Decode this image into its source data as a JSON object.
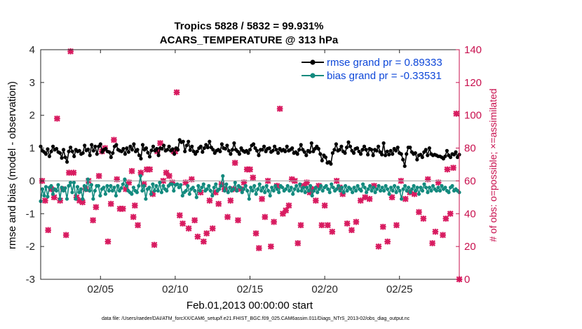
{
  "chart_data": {
    "type": "line",
    "title_line1": "Tropics 5828 / 5832 = 99.931%",
    "title_line2": "ACARS_TEMPERATURE @ 313 hPa",
    "xlabel": "Feb.01,2013 00:00:00 start",
    "ylabel_left": "rmse and bias (model - observation)",
    "ylabel_right": "# of obs: o=possible; ×=assimilated",
    "footer": "data file: /Users/raeder/DAI/ATM_forcXX/CAM6_setup/f.e21.FHIST_BGC.f09_025.CAM6assim.011/Diags_NTrS_2013-02/obs_diag_output.nc",
    "xlim": [
      1.0,
      29.0
    ],
    "ylim_left": [
      -3,
      4
    ],
    "ylim_right": [
      0,
      140
    ],
    "xticks": [
      5,
      10,
      15,
      20,
      25
    ],
    "xtick_labels": [
      "02/05",
      "02/10",
      "02/15",
      "02/20",
      "02/25"
    ],
    "yticks_left": [
      -3,
      -2,
      -1,
      0,
      1,
      2,
      3,
      4
    ],
    "yticks_left_labels": [
      "-3",
      "-2",
      "-1",
      "0",
      "1",
      "2",
      "3",
      "4"
    ],
    "yticks_right": [
      0,
      20,
      40,
      60,
      80,
      100,
      120,
      140
    ],
    "yticks_right_labels": [
      "0",
      "20",
      "40",
      "60",
      "80",
      "100",
      "120",
      "140"
    ],
    "legend_position": "top-right",
    "colors": {
      "rmse": "#000000",
      "bias": "#128a7e",
      "obs": "#d81b60",
      "right_axis": "#c8104e",
      "legend_text": "#0d47d9"
    },
    "series": [
      {
        "name": "rmse grand pr = 0.89333",
        "values": [
          1.05,
          0.92,
          0.88,
          0.82,
          0.97,
          0.75,
          0.9,
          1.05,
          0.95,
          0.98,
          0.88,
          0.85,
          0.7,
          0.95,
          0.72,
          0.58,
          0.9,
          1.02,
          0.9,
          0.75,
          0.95,
          0.9,
          0.92,
          0.82,
          0.85,
          1.08,
          0.93,
          0.96,
          0.78,
          1.1,
          0.92,
          1.05,
          0.82,
          1.05,
          1.12,
          0.88,
          0.95,
          0.98,
          0.9,
          0.88,
          0.72,
          0.85,
          1.05,
          1.1,
          0.95,
          0.92,
          0.9,
          0.98,
          0.82,
          1.0,
          0.88,
          1.05,
          0.95,
          1.12,
          0.9,
          0.95,
          0.78,
          0.68,
          1.1,
          0.95,
          1.0,
          0.86,
          0.74,
          0.93,
          1.05,
          0.92,
          0.98,
          0.78,
          1.0,
          0.98,
          1.08,
          0.92,
          0.95,
          1.05,
          0.92,
          0.97,
          0.82,
          1.0,
          0.95,
          1.25,
          1.18,
          1.2,
          0.9,
          1.08,
          1.2,
          0.94,
          1.05,
          0.9,
          0.82,
          0.9,
          1.0,
          1.05,
          0.88,
          1.0,
          1.1,
          1.02,
          1.2,
          1.02,
          0.95,
          0.85,
          0.92,
          0.95,
          0.9,
          1.12,
          1.0,
          0.98,
          1.08,
          0.92,
          0.82,
          0.95,
          1.15,
          0.95,
          0.9,
          0.82,
          1.0,
          0.92,
          0.88,
          0.92,
          0.85,
          0.95,
          1.08,
          1.12,
          1.0,
          0.92,
          0.78,
          0.95,
          0.95,
          1.05,
          0.9,
          0.98,
          1.0,
          0.88,
          0.92,
          1.05,
          0.95,
          0.85,
          0.98,
          0.92,
          0.95,
          0.9,
          1.05,
          0.92,
          0.95,
          1.0,
          0.85,
          0.88,
          0.82,
          0.95,
          1.1,
          0.95,
          0.88,
          0.78,
          0.92,
          0.88,
          1.15,
          0.9,
          0.98,
          1.05,
          0.98,
          0.82,
          0.62,
          0.78,
          0.72,
          0.55,
          0.58,
          0.52,
          0.85,
          0.95,
          1.12,
          0.92,
          0.95,
          1.05,
          0.9,
          0.85,
          1.02,
          1.18,
          1.05,
          0.92,
          0.85,
          0.98,
          1.0,
          0.9,
          0.82,
          0.95,
          1.05,
          0.95,
          0.8,
          0.98,
          0.95,
          0.78,
          0.95,
          0.92,
          1.05,
          0.88,
          0.8,
          1.15,
          0.78,
          0.9,
          0.8,
          0.92,
          0.82,
          0.98,
          0.92,
          1.02,
          0.85,
          0.82,
          0.65,
          0.45,
          0.82,
          1.02,
          1.02,
          0.88,
          0.82,
          0.85,
          0.65,
          0.78,
          0.8,
          0.72,
          0.88,
          0.95,
          0.78,
          1.0,
          0.82,
          0.78,
          0.8,
          0.78,
          0.75,
          0.75,
          0.72,
          0.68,
          0.75,
          0.92,
          0.78,
          0.72,
          0.82,
          0.8,
          0.88,
          0.72,
          0.8
        ]
      },
      {
        "name": "bias grand pr = -0.33531",
        "values": [
          -0.62,
          -0.25,
          -0.45,
          -0.18,
          -0.48,
          -0.2,
          -0.15,
          -0.4,
          -0.25,
          -0.3,
          -0.12,
          -0.55,
          -0.2,
          -0.3,
          -0.22,
          -0.55,
          -0.15,
          -0.05,
          -0.35,
          -0.05,
          -0.55,
          -0.18,
          -0.35,
          -0.25,
          -0.55,
          -0.15,
          -0.28,
          0.05,
          -0.3,
          -0.12,
          -0.55,
          -0.3,
          -0.15,
          -0.15,
          -0.45,
          -0.25,
          -0.2,
          -0.4,
          -0.15,
          -0.3,
          -0.15,
          -0.3,
          -0.2,
          -0.45,
          -0.15,
          -0.3,
          -0.22,
          -0.1,
          0.05,
          -0.15,
          -0.3,
          -0.35,
          -0.4,
          -0.2,
          -0.3,
          -0.35,
          -0.15,
          0.15,
          -0.3,
          -0.15,
          -0.55,
          -0.25,
          -0.2,
          -0.4,
          -0.1,
          -0.3,
          -0.15,
          -0.3,
          -0.05,
          -0.35,
          -0.15,
          -0.25,
          -0.3,
          -0.15,
          -0.1,
          -0.1,
          -0.3,
          -0.12,
          -0.1,
          -0.2,
          -0.12,
          -0.45,
          -0.35,
          -0.3,
          -0.15,
          -0.4,
          -0.25,
          -0.2,
          -0.3,
          -0.5,
          -0.15,
          -0.3,
          -0.2,
          -0.1,
          -0.3,
          -0.25,
          -0.15,
          -0.3,
          -0.45,
          -0.2,
          -0.1,
          -0.3,
          -0.25,
          -0.15,
          0.15,
          -0.3,
          -0.1,
          -0.35,
          -0.2,
          -0.3,
          -0.25,
          -0.05,
          -0.3,
          -0.15,
          -0.2,
          -0.35,
          -0.25,
          -0.15,
          -0.3,
          -0.55,
          -0.2,
          -0.3,
          -0.15,
          -0.4,
          -0.25,
          -0.1,
          -0.3,
          -0.2,
          -0.35,
          -0.15,
          -0.3,
          -0.45,
          -0.2,
          -0.3,
          -0.15,
          -0.25,
          -0.35,
          -0.15,
          -0.2,
          -0.3,
          -0.25,
          -0.15,
          -0.3,
          -0.2,
          -0.4,
          -0.25,
          -0.15,
          -0.3,
          -0.1,
          -0.3,
          -0.2,
          -0.35,
          -0.2,
          -0.3,
          -0.15,
          -0.45,
          -0.3,
          -0.2,
          -0.35,
          -0.25,
          -0.15,
          -0.3,
          -0.2,
          -0.15,
          -0.25,
          -0.35,
          -0.1,
          -0.2,
          -0.3,
          -0.25,
          -0.15,
          -0.3,
          -0.2,
          -0.35,
          -0.15,
          -0.3,
          -0.2,
          -0.25,
          -0.35,
          -0.2,
          -0.3,
          -0.15,
          -0.25,
          -0.3,
          -0.1,
          -0.2,
          -0.35,
          -0.25,
          -0.15,
          -0.3,
          -0.2,
          -0.35,
          -0.25,
          -0.15,
          -0.3,
          -0.2,
          -0.3,
          -0.15,
          -0.25,
          -0.4,
          -0.2,
          -0.3,
          -0.15,
          -0.35,
          -0.2,
          -0.3,
          -0.55,
          -0.25,
          -0.15,
          -0.3,
          -0.2,
          -0.35,
          -0.25,
          -0.15,
          -0.3,
          -0.2,
          -0.4,
          -0.2,
          -0.3,
          -0.1,
          -0.2,
          -0.35,
          -0.2,
          -0.3,
          -0.15,
          -0.25,
          -0.3,
          -0.2,
          -0.3,
          -0.15,
          -0.25,
          -0.2,
          -0.3,
          -0.35,
          -0.2,
          -0.15,
          -0.3,
          -0.25,
          -0.3,
          -0.35
        ]
      }
    ],
    "obs_assimilated": [
      [
        1.1,
        60
      ],
      [
        1.3,
        48
      ],
      [
        1.5,
        30
      ],
      [
        1.7,
        55
      ],
      [
        1.9,
        50
      ],
      [
        2.1,
        98
      ],
      [
        2.3,
        48
      ],
      [
        2.5,
        55
      ],
      [
        2.7,
        27
      ],
      [
        2.9,
        65
      ],
      [
        3.0,
        139
      ],
      [
        3.2,
        65
      ],
      [
        3.4,
        50
      ],
      [
        3.6,
        48
      ],
      [
        3.8,
        47
      ],
      [
        4.0,
        55
      ],
      [
        4.2,
        60
      ],
      [
        4.5,
        36
      ],
      [
        4.7,
        44
      ],
      [
        4.9,
        63
      ],
      [
        5.1,
        78
      ],
      [
        5.3,
        80
      ],
      [
        5.5,
        23
      ],
      [
        5.7,
        46
      ],
      [
        5.9,
        85
      ],
      [
        6.1,
        61
      ],
      [
        6.3,
        43
      ],
      [
        6.5,
        43
      ],
      [
        6.7,
        55
      ],
      [
        6.9,
        59
      ],
      [
        7.1,
        66
      ],
      [
        7.2,
        38
      ],
      [
        7.3,
        45
      ],
      [
        7.5,
        33
      ],
      [
        7.7,
        65
      ],
      [
        7.9,
        58
      ],
      [
        8.1,
        67
      ],
      [
        8.3,
        67
      ],
      [
        8.5,
        52
      ],
      [
        8.6,
        21
      ],
      [
        8.8,
        78
      ],
      [
        9.0,
        83
      ],
      [
        9.2,
        60
      ],
      [
        9.4,
        65
      ],
      [
        9.6,
        63
      ],
      [
        9.8,
        59
      ],
      [
        9.9,
        78
      ],
      [
        10.0,
        78
      ],
      [
        10.1,
        114
      ],
      [
        10.3,
        39
      ],
      [
        10.5,
        34
      ],
      [
        10.7,
        59
      ],
      [
        10.9,
        31
      ],
      [
        11.1,
        61
      ],
      [
        11.3,
        36
      ],
      [
        11.5,
        26
      ],
      [
        11.7,
        53
      ],
      [
        11.9,
        23
      ],
      [
        12.1,
        28
      ],
      [
        12.3,
        48
      ],
      [
        12.5,
        31
      ],
      [
        12.7,
        53
      ],
      [
        12.9,
        46
      ],
      [
        13.1,
        58
      ],
      [
        13.3,
        55
      ],
      [
        13.5,
        38
      ],
      [
        13.7,
        48
      ],
      [
        13.9,
        55
      ],
      [
        14.0,
        71
      ],
      [
        14.2,
        36
      ],
      [
        14.4,
        55
      ],
      [
        14.6,
        59
      ],
      [
        14.8,
        67
      ],
      [
        15.0,
        67
      ],
      [
        15.2,
        62
      ],
      [
        15.4,
        28
      ],
      [
        15.6,
        19
      ],
      [
        15.8,
        49
      ],
      [
        16.0,
        38
      ],
      [
        16.2,
        60
      ],
      [
        16.4,
        20
      ],
      [
        16.6,
        35
      ],
      [
        16.8,
        57
      ],
      [
        17.0,
        104
      ],
      [
        17.2,
        40
      ],
      [
        17.4,
        42
      ],
      [
        17.6,
        45
      ],
      [
        17.8,
        61
      ],
      [
        18.0,
        60
      ],
      [
        18.2,
        22
      ],
      [
        18.4,
        33
      ],
      [
        18.6,
        57
      ],
      [
        18.8,
        59
      ],
      [
        19.0,
        53
      ],
      [
        19.2,
        55
      ],
      [
        19.4,
        48
      ],
      [
        19.6,
        57
      ],
      [
        19.8,
        33
      ],
      [
        20.0,
        45
      ],
      [
        20.2,
        33
      ],
      [
        20.5,
        29
      ],
      [
        20.8,
        60
      ],
      [
        21.0,
        56
      ],
      [
        21.2,
        52
      ],
      [
        21.5,
        34
      ],
      [
        21.8,
        30
      ],
      [
        22.1,
        35
      ],
      [
        22.4,
        48
      ],
      [
        22.7,
        50
      ],
      [
        23.0,
        49
      ],
      [
        23.3,
        57
      ],
      [
        23.6,
        20
      ],
      [
        23.9,
        32
      ],
      [
        24.2,
        23
      ],
      [
        24.5,
        50
      ],
      [
        24.8,
        33
      ],
      [
        25.1,
        60
      ],
      [
        25.4,
        49
      ],
      [
        25.7,
        53
      ],
      [
        26.0,
        52
      ],
      [
        26.3,
        41
      ],
      [
        26.6,
        37
      ],
      [
        26.9,
        61
      ],
      [
        27.2,
        22
      ],
      [
        27.4,
        29
      ],
      [
        27.6,
        59
      ],
      [
        27.9,
        27
      ],
      [
        28.1,
        37
      ],
      [
        28.2,
        67
      ],
      [
        28.4,
        40
      ],
      [
        28.6,
        68
      ],
      [
        28.8,
        101
      ],
      [
        29.0,
        0
      ]
    ]
  }
}
